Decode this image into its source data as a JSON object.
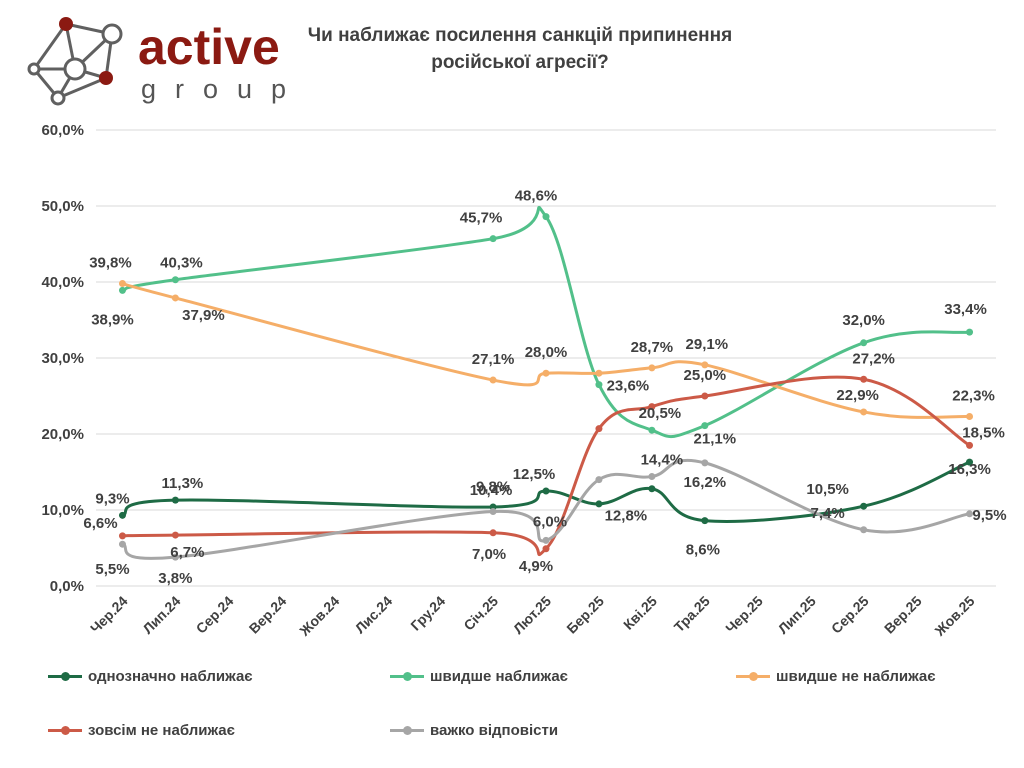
{
  "logo": {
    "name": "active",
    "sub": "group"
  },
  "chart_data": {
    "type": "line",
    "title": "Чи наближає посилення санкцій припинення російської агресії?",
    "categories": [
      "Чер.24",
      "Лип.24",
      "Сер.24",
      "Вер.24",
      "Жов.24",
      "Лис.24",
      "Гру.24",
      "Січ.25",
      "Лют.25",
      "Бер.25",
      "Кві.25",
      "Тра.25",
      "Чер.25",
      "Лип.25",
      "Сер.25",
      "Вер.25",
      "Жов.25"
    ],
    "ylim": [
      0,
      60
    ],
    "yticks": [
      0,
      10,
      20,
      30,
      40,
      50,
      60
    ],
    "ytick_labels": [
      "0,0%",
      "10,0%",
      "20,0%",
      "30,0%",
      "40,0%",
      "50,0%",
      "60,0%"
    ],
    "legend_position": "bottom",
    "series": [
      {
        "name": "однозначно наближає",
        "color": "#1e6b45",
        "points": [
          [
            0,
            9.3
          ],
          [
            1,
            11.3
          ],
          [
            7,
            10.4
          ],
          [
            8,
            12.5
          ],
          [
            9,
            10.8
          ],
          [
            10,
            12.8
          ],
          [
            11,
            8.6
          ],
          [
            14,
            10.5
          ],
          [
            16,
            16.3
          ]
        ],
        "labels": [
          {
            "i": 0,
            "text": "9,3%"
          },
          {
            "i": 1,
            "text": "11,3%"
          },
          {
            "i": 2,
            "text": "10,4%"
          },
          {
            "i": 3,
            "text": "12,5%"
          },
          {
            "i": 5,
            "text": "12,8%"
          },
          {
            "i": 6,
            "text": "8,6%"
          },
          {
            "i": 7,
            "text": "10,5%"
          },
          {
            "i": 8,
            "text": "16,3%"
          }
        ]
      },
      {
        "name": "швидше наближає",
        "color": "#52c08a",
        "points": [
          [
            0,
            38.9
          ],
          [
            1,
            40.3
          ],
          [
            7,
            45.7
          ],
          [
            8,
            48.6
          ],
          [
            9,
            26.5
          ],
          [
            10,
            20.5
          ],
          [
            11,
            21.1
          ],
          [
            14,
            32.0
          ],
          [
            16,
            33.4
          ]
        ],
        "labels": [
          {
            "i": 0,
            "text": "38,9%"
          },
          {
            "i": 1,
            "text": "40,3%"
          },
          {
            "i": 2,
            "text": "45,7%"
          },
          {
            "i": 3,
            "text": "48,6%"
          },
          {
            "i": 5,
            "text": "20,5%"
          },
          {
            "i": 6,
            "text": "21,1%"
          },
          {
            "i": 7,
            "text": "32,0%"
          },
          {
            "i": 8,
            "text": "33,4%"
          }
        ]
      },
      {
        "name": "швидше не наближає",
        "color": "#f5ae68",
        "points": [
          [
            0,
            39.8
          ],
          [
            1,
            37.9
          ],
          [
            7,
            27.1
          ],
          [
            8,
            28.0
          ],
          [
            9,
            28.0
          ],
          [
            10,
            28.7
          ],
          [
            11,
            29.1
          ],
          [
            14,
            22.9
          ],
          [
            16,
            22.3
          ]
        ],
        "labels": [
          {
            "i": 0,
            "text": "39,8%"
          },
          {
            "i": 1,
            "text": "37,9%"
          },
          {
            "i": 2,
            "text": "27,1%"
          },
          {
            "i": 3,
            "text": "28,0%"
          },
          {
            "i": 5,
            "text": "28,7%"
          },
          {
            "i": 6,
            "text": "29,1%"
          },
          {
            "i": 7,
            "text": "22,9%"
          },
          {
            "i": 8,
            "text": "22,3%"
          }
        ]
      },
      {
        "name": "зовсім не наближає",
        "color": "#cc5a47",
        "points": [
          [
            0,
            6.6
          ],
          [
            1,
            6.7
          ],
          [
            7,
            7.0
          ],
          [
            8,
            4.9
          ],
          [
            9,
            20.7
          ],
          [
            10,
            23.6
          ],
          [
            11,
            25.0
          ],
          [
            14,
            27.2
          ],
          [
            16,
            18.5
          ]
        ],
        "labels": [
          {
            "i": 0,
            "text": "6,6%"
          },
          {
            "i": 1,
            "text": "6,7%"
          },
          {
            "i": 2,
            "text": "7,0%"
          },
          {
            "i": 3,
            "text": "4,9%"
          },
          {
            "i": 5,
            "text": "23,6%"
          },
          {
            "i": 6,
            "text": "25,0%"
          },
          {
            "i": 7,
            "text": "27,2%"
          },
          {
            "i": 8,
            "text": "18,5%"
          }
        ]
      },
      {
        "name": "важко відповісти",
        "color": "#a6a6a6",
        "points": [
          [
            0,
            5.5
          ],
          [
            1,
            3.8
          ],
          [
            7,
            9.8
          ],
          [
            8,
            6.0
          ],
          [
            9,
            14.0
          ],
          [
            10,
            14.4
          ],
          [
            11,
            16.2
          ],
          [
            14,
            7.4
          ],
          [
            16,
            9.5
          ]
        ],
        "labels": [
          {
            "i": 0,
            "text": "5,5%"
          },
          {
            "i": 1,
            "text": "3,8%"
          },
          {
            "i": 2,
            "text": "9,8%"
          },
          {
            "i": 3,
            "text": "6,0%"
          },
          {
            "i": 5,
            "text": "14,4%"
          },
          {
            "i": 6,
            "text": "16,2%"
          },
          {
            "i": 7,
            "text": "7,4%"
          },
          {
            "i": 8,
            "text": "9,5%"
          }
        ]
      }
    ]
  }
}
